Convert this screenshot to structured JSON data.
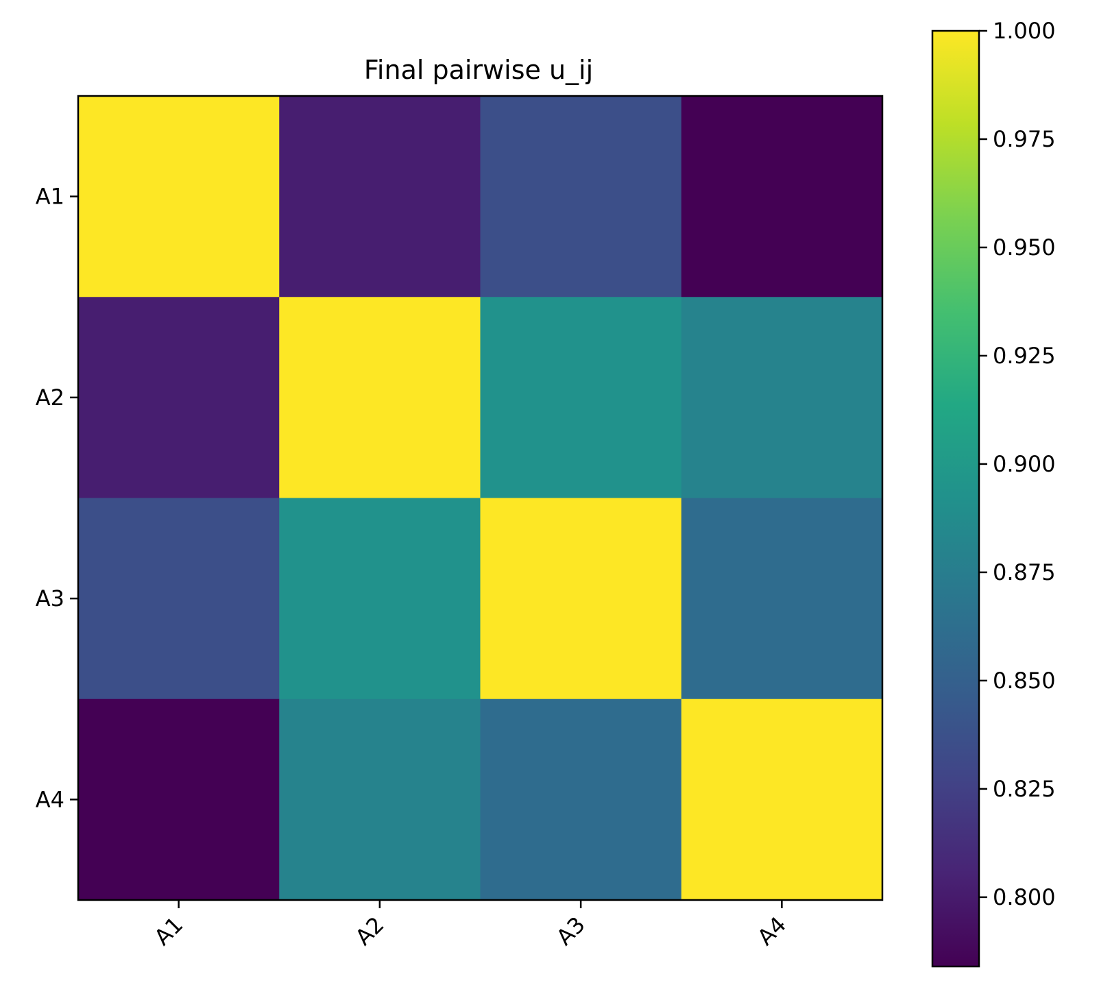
{
  "chart_data": {
    "type": "heatmap",
    "title": "Final pairwise u_ij",
    "xlabel": "",
    "ylabel": "",
    "x_categories": [
      "A1",
      "A2",
      "A3",
      "A4"
    ],
    "y_categories": [
      "A1",
      "A2",
      "A3",
      "A4"
    ],
    "values": [
      [
        1.0,
        0.802,
        0.836,
        0.784
      ],
      [
        0.802,
        1.0,
        0.893,
        0.88
      ],
      [
        0.836,
        0.893,
        1.0,
        0.86
      ],
      [
        0.784,
        0.88,
        0.86,
        1.0
      ]
    ],
    "colormap": "viridis",
    "colorbar": {
      "min": 0.784,
      "max": 1.0,
      "ticks": [
        0.8,
        0.825,
        0.85,
        0.875,
        0.9,
        0.925,
        0.95,
        0.975,
        1.0
      ],
      "tick_labels": [
        "0.800",
        "0.825",
        "0.850",
        "0.875",
        "0.900",
        "0.925",
        "0.950",
        "0.975",
        "1.000"
      ]
    },
    "x_tick_rotation": "45",
    "grid": false
  }
}
